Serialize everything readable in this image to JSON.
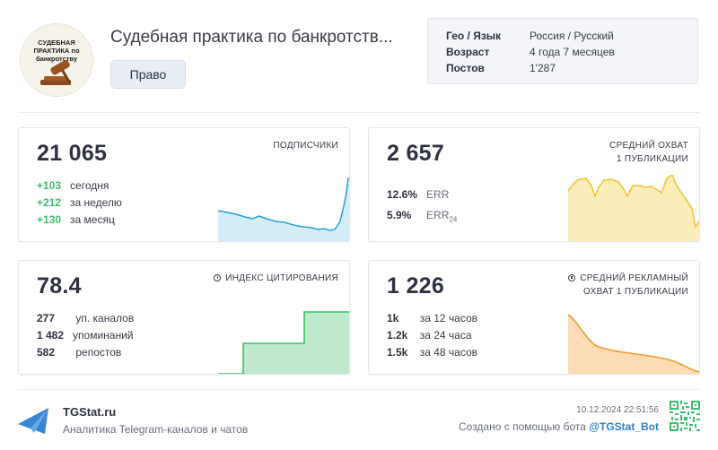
{
  "header": {
    "avatar_text": "СУДЕБНАЯ ПРАКТИКА по банкротству",
    "title": "Судебная практика по банкротств...",
    "tag": "Право"
  },
  "info": [
    {
      "key": "Гео / Язык",
      "value": "Россия / Русский"
    },
    {
      "key": "Возраст",
      "value": "4 года 7 месяцев"
    },
    {
      "key": "Постов",
      "value": "1'287"
    }
  ],
  "subscribers": {
    "value": "21 065",
    "label": "ПОДПИСЧИКИ",
    "rows": [
      {
        "num": "+103",
        "text": "сегодня"
      },
      {
        "num": "+212",
        "text": "за неделю"
      },
      {
        "num": "+130",
        "text": "за месяц"
      }
    ],
    "color": "#2b9fd8"
  },
  "reach": {
    "value": "2 657",
    "label1": "СРЕДНИЙ ОХВАТ",
    "label2": "1 ПУБЛИКАЦИИ",
    "err": {
      "num": "12.6%",
      "text": "ERR"
    },
    "err24": {
      "num": "5.9%",
      "text": "ERR",
      "sub": "24"
    },
    "color": "#f2c230"
  },
  "citation": {
    "value": "78.4",
    "label": "ИНДЕКС ЦИТИРОВАНИЯ",
    "rows": [
      {
        "num": "277",
        "text": "уп. каналов"
      },
      {
        "num": "1 482",
        "text": "упоминаний"
      },
      {
        "num": "582",
        "text": "репостов"
      }
    ],
    "color": "#3bbf6c"
  },
  "ad_reach": {
    "value": "1 226",
    "label1": "СРЕДНИЙ РЕКЛАМНЫЙ",
    "label2": "ОХВАТ 1 ПУБЛИКАЦИИ",
    "rows": [
      {
        "num": "1k",
        "text": "за 12 часов"
      },
      {
        "num": "1.2k",
        "text": "за 24 часа"
      },
      {
        "num": "1.5k",
        "text": "за 48 часов"
      }
    ],
    "color": "#f29a2e"
  },
  "footer": {
    "brand": "TGStat.ru",
    "tagline": "Аналитика Telegram-каналов и чатов",
    "datetime": "10.12.2024 22:51:56",
    "made_with": "Создано с помощью бота",
    "bot": "@TGStat_Bot",
    "brand_color": "#2d7fd3"
  }
}
